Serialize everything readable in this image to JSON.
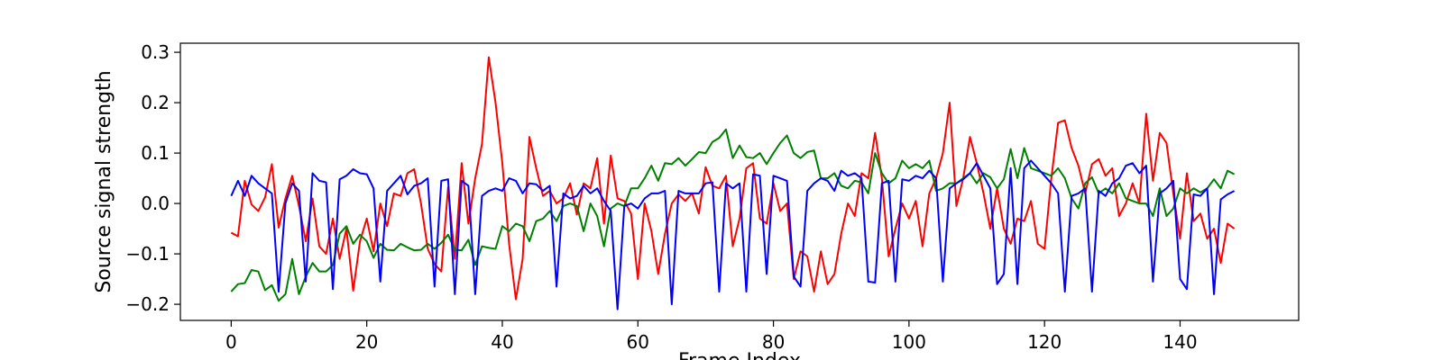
{
  "chart_data": {
    "type": "line",
    "title": "",
    "xlabel": "Frame Index",
    "ylabel": "Source signal strength",
    "xlim": [
      -7.5,
      157.5
    ],
    "ylim": [
      -0.232,
      0.318
    ],
    "x_ticks": [
      0,
      20,
      40,
      60,
      80,
      100,
      120,
      140
    ],
    "y_ticks": [
      -0.2,
      -0.1,
      0.0,
      0.1,
      0.2,
      0.3
    ],
    "y_tick_labels": [
      "−0.2",
      "−0.1",
      "0.0",
      "0.1",
      "0.2",
      "0.3"
    ],
    "grid": false,
    "legend": "none",
    "x_start": 0,
    "x_step": 1,
    "series": [
      {
        "color": "#ff0000",
        "values": [
          -0.058,
          -0.065,
          0.045,
          -0.002,
          -0.015,
          0.012,
          0.078,
          -0.048,
          0.01,
          0.055,
          -0.005,
          -0.075,
          0.01,
          -0.085,
          -0.1,
          -0.03,
          -0.11,
          -0.05,
          -0.173,
          -0.075,
          -0.03,
          -0.095,
          0.0,
          -0.045,
          0.02,
          0.015,
          0.06,
          0.068,
          0.0,
          -0.09,
          -0.12,
          -0.135,
          0.032,
          -0.11,
          0.08,
          -0.04,
          0.05,
          0.118,
          0.29,
          0.2,
          0.08,
          -0.08,
          -0.19,
          -0.11,
          0.132,
          0.07,
          0.015,
          0.025,
          0.0,
          0.01,
          0.04,
          -0.022,
          0.04,
          0.03,
          0.09,
          -0.04,
          0.095,
          0.01,
          0.005,
          -0.02,
          -0.15,
          0.0,
          -0.055,
          -0.14,
          -0.06,
          0.0,
          0.018,
          0.005,
          0.02,
          -0.02,
          0.072,
          0.035,
          0.03,
          0.055,
          -0.085,
          -0.03,
          0.07,
          0.08,
          -0.03,
          -0.04,
          0.04,
          -0.015,
          0.0,
          -0.15,
          -0.095,
          -0.105,
          -0.175,
          -0.095,
          -0.16,
          -0.14,
          -0.06,
          0.0,
          -0.025,
          0.06,
          0.05,
          0.14,
          0.05,
          -0.105,
          -0.05,
          0.0,
          -0.03,
          0.005,
          -0.085,
          0.02,
          0.05,
          0.1,
          0.2,
          -0.005,
          0.05,
          0.132,
          0.08,
          0.02,
          -0.05,
          0.03,
          -0.05,
          -0.08,
          -0.03,
          -0.035,
          0.005,
          -0.08,
          -0.09,
          0.05,
          0.16,
          0.165,
          0.11,
          0.075,
          0.02,
          0.078,
          0.088,
          0.055,
          0.07,
          -0.025,
          0.0,
          0.04,
          0.0,
          0.178,
          0.045,
          0.14,
          0.12,
          0.02,
          -0.07,
          0.06,
          -0.035,
          -0.02,
          -0.07,
          -0.05,
          -0.118,
          -0.04,
          -0.05
        ]
      },
      {
        "color": "#008000",
        "values": [
          -0.175,
          -0.16,
          -0.158,
          -0.132,
          -0.135,
          -0.172,
          -0.162,
          -0.193,
          -0.18,
          -0.11,
          -0.18,
          -0.145,
          -0.118,
          -0.135,
          -0.135,
          -0.122,
          -0.06,
          -0.045,
          -0.08,
          -0.062,
          -0.075,
          -0.108,
          -0.08,
          -0.092,
          -0.093,
          -0.08,
          -0.087,
          -0.093,
          -0.092,
          -0.08,
          -0.09,
          -0.078,
          -0.062,
          -0.092,
          -0.093,
          -0.072,
          -0.122,
          -0.085,
          -0.088,
          -0.09,
          -0.045,
          -0.055,
          -0.04,
          -0.045,
          -0.075,
          -0.035,
          -0.03,
          -0.015,
          -0.035,
          -0.005,
          0.0,
          -0.005,
          -0.055,
          0.0,
          -0.025,
          -0.085,
          -0.01,
          0.0,
          -0.005,
          0.03,
          0.03,
          0.05,
          0.075,
          0.045,
          0.08,
          0.078,
          0.09,
          0.075,
          0.088,
          0.102,
          0.1,
          0.122,
          0.13,
          0.147,
          0.09,
          0.115,
          0.092,
          0.09,
          0.1,
          0.078,
          0.1,
          0.12,
          0.135,
          0.1,
          0.09,
          0.102,
          0.105,
          0.05,
          0.05,
          0.06,
          0.035,
          0.03,
          0.045,
          0.042,
          0.02,
          0.1,
          0.06,
          0.04,
          0.05,
          0.085,
          0.07,
          0.078,
          0.07,
          0.085,
          0.025,
          0.03,
          0.04,
          0.04,
          0.05,
          0.06,
          0.04,
          0.06,
          0.052,
          0.03,
          0.048,
          0.108,
          0.05,
          0.11,
          0.07,
          0.065,
          0.06,
          0.055,
          0.07,
          0.05,
          0.01,
          -0.01,
          0.04,
          0.052,
          0.02,
          0.03,
          0.02,
          0.04,
          0.01,
          0.005,
          0.0,
          0.0,
          -0.025,
          0.03,
          -0.025,
          -0.01,
          0.03,
          0.02,
          0.03,
          0.022,
          0.03,
          0.048,
          0.03,
          0.065,
          0.058
        ]
      },
      {
        "color": "#0000ff",
        "values": [
          0.015,
          0.045,
          0.015,
          0.055,
          0.04,
          0.03,
          0.02,
          -0.175,
          0.0,
          0.04,
          0.025,
          -0.155,
          0.06,
          0.045,
          0.042,
          -0.17,
          0.048,
          0.055,
          0.068,
          0.06,
          0.058,
          0.03,
          -0.155,
          0.025,
          0.04,
          0.055,
          0.018,
          0.035,
          0.04,
          0.05,
          -0.165,
          0.045,
          0.048,
          -0.18,
          0.045,
          0.035,
          -0.18,
          0.015,
          0.025,
          0.03,
          0.025,
          0.05,
          0.045,
          0.02,
          0.04,
          0.038,
          0.025,
          0.035,
          -0.165,
          0.02,
          0.01,
          0.015,
          0.035,
          0.02,
          0.03,
          0.005,
          -0.015,
          -0.21,
          -0.005,
          0.0,
          -0.01,
          0.01,
          0.02,
          0.02,
          0.025,
          -0.2,
          0.025,
          0.02,
          0.02,
          0.02,
          0.04,
          0.042,
          -0.175,
          0.04,
          0.03,
          0.04,
          -0.175,
          0.058,
          0.055,
          -0.14,
          0.055,
          0.05,
          0.045,
          -0.145,
          -0.165,
          0.025,
          0.04,
          0.05,
          0.045,
          0.025,
          0.065,
          0.055,
          0.06,
          0.05,
          -0.155,
          -0.157,
          0.04,
          0.045,
          -0.155,
          0.048,
          0.045,
          0.055,
          0.05,
          0.065,
          0.05,
          -0.155,
          0.03,
          0.04,
          0.048,
          0.06,
          0.08,
          0.055,
          0.03,
          -0.16,
          -0.14,
          0.07,
          -0.16,
          0.07,
          0.085,
          0.07,
          0.055,
          0.04,
          0.02,
          -0.175,
          0.015,
          0.02,
          0.03,
          -0.175,
          0.025,
          0.015,
          0.04,
          0.05,
          0.075,
          0.08,
          0.06,
          0.075,
          -0.155,
          0.02,
          0.03,
          0.045,
          -0.15,
          -0.17,
          0.018,
          0.015,
          0.03,
          -0.18,
          0.008,
          0.018,
          0.025
        ]
      }
    ]
  }
}
